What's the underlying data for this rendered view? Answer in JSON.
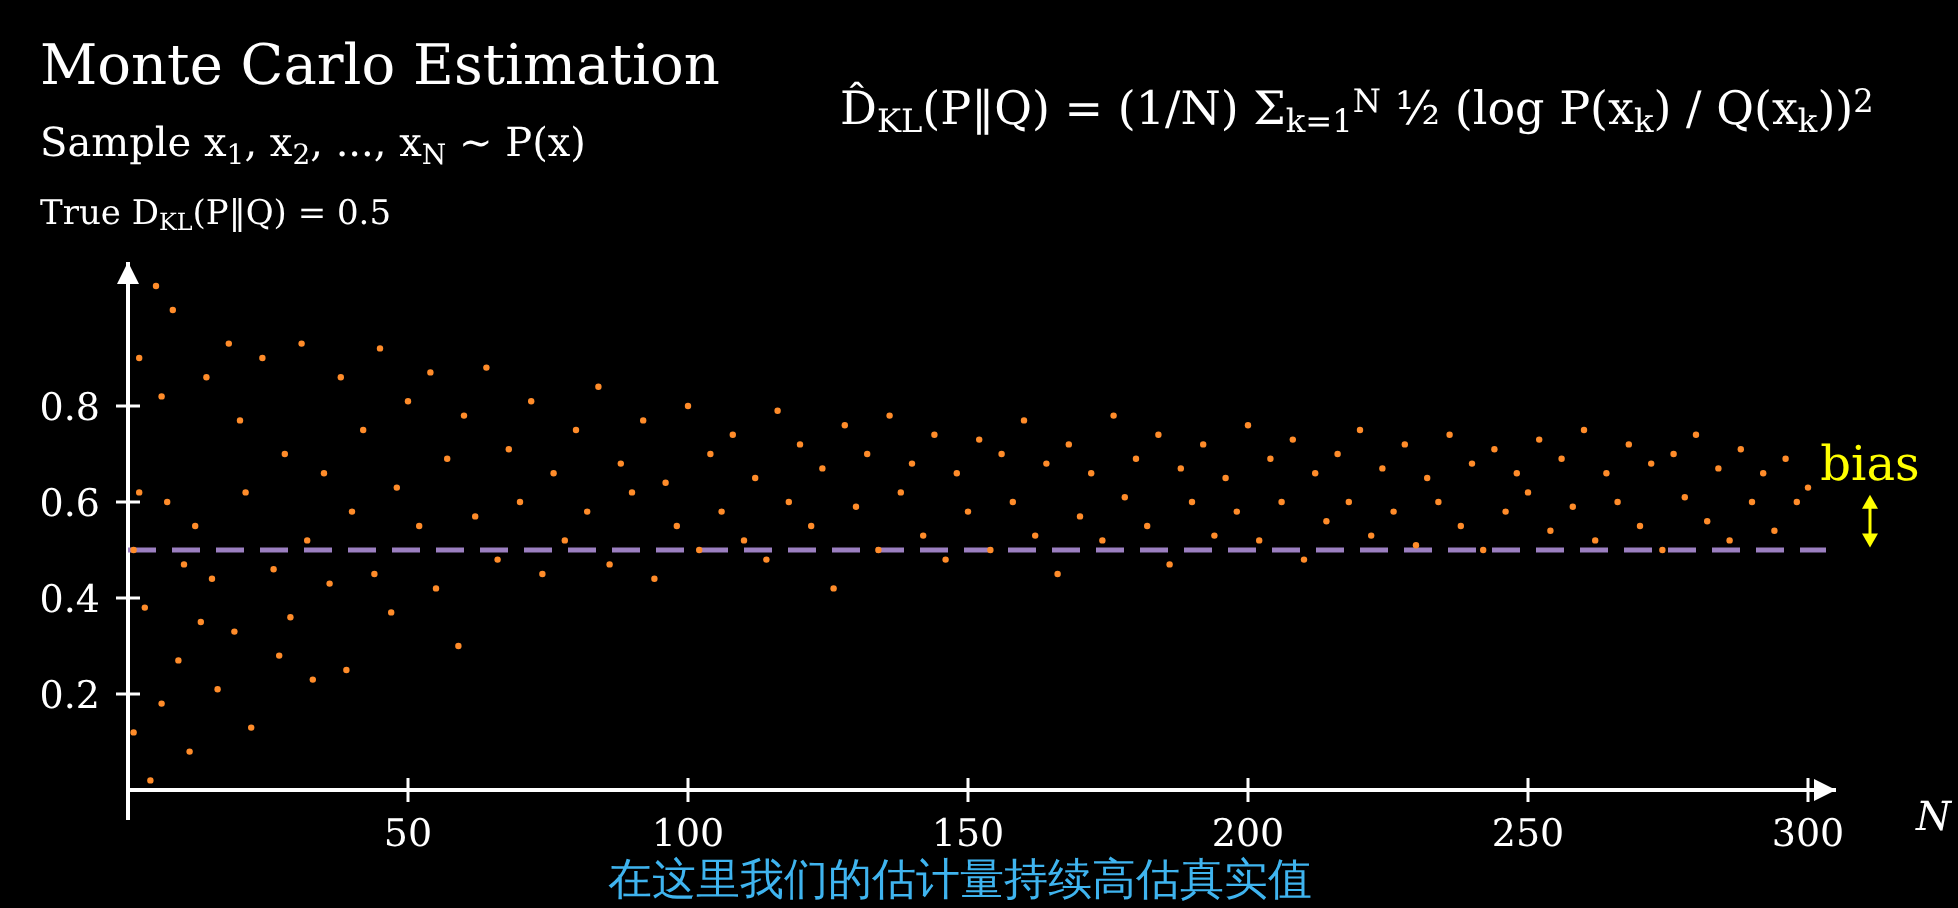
{
  "chart_data": {
    "type": "scatter",
    "title": "Monte Carlo Estimation",
    "subtitle": "Sample x$_{1}$, x$_{2}$, ..., x$_{N}$ ∼ P(x)",
    "xlabel": "N",
    "annotations": [
      "True  D$_{KL}$(P‖Q) = 0.5",
      "D̂$_{KL}$(P‖Q) = (1/N) Σ$_{k=1}$$^{N}$ ½ (log P(x$_{k}$) / Q(x$_{k}$))$^{2}$",
      "bias",
      "在这里我们的估计量持续高估真实值"
    ],
    "xlim": [
      0,
      305
    ],
    "ylim": [
      0,
      1.1
    ],
    "xticks": [
      50,
      100,
      150,
      200,
      250,
      300
    ],
    "yticks": [
      0.2,
      0.4,
      0.6,
      0.8
    ],
    "grid": false,
    "marker": "circle",
    "ref_lines": [
      {
        "axis": "y",
        "value": 0.5,
        "color": "#9b7fc0",
        "line_style": "dashed"
      }
    ],
    "series": [
      {
        "color": "#ff8c2a",
        "x": [
          1,
          1,
          2,
          2,
          3,
          4,
          5,
          6,
          6,
          7,
          8,
          9,
          10,
          11,
          12,
          13,
          14,
          15,
          16,
          18,
          19,
          20,
          21,
          22,
          24,
          26,
          27,
          28,
          29,
          31,
          32,
          33,
          35,
          36,
          38,
          39,
          40,
          42,
          44,
          45,
          47,
          48,
          50,
          52,
          54,
          55,
          57,
          59,
          60,
          62,
          64,
          66,
          68,
          70,
          72,
          74,
          76,
          78,
          80,
          82,
          84,
          86,
          88,
          90,
          92,
          94,
          96,
          98,
          100,
          102,
          104,
          106,
          108,
          110,
          112,
          114,
          116,
          118,
          120,
          122,
          124,
          126,
          128,
          130,
          132,
          134,
          136,
          138,
          140,
          142,
          144,
          146,
          148,
          150,
          152,
          154,
          156,
          158,
          160,
          162,
          164,
          166,
          168,
          170,
          172,
          174,
          176,
          178,
          180,
          182,
          184,
          186,
          188,
          190,
          192,
          194,
          196,
          198,
          200,
          202,
          204,
          206,
          208,
          210,
          212,
          214,
          216,
          218,
          220,
          222,
          224,
          226,
          228,
          230,
          232,
          234,
          236,
          238,
          240,
          242,
          244,
          246,
          248,
          250,
          252,
          254,
          256,
          258,
          260,
          262,
          264,
          266,
          268,
          270,
          272,
          274,
          276,
          278,
          280,
          282,
          284,
          286,
          288,
          290,
          292,
          294,
          296,
          298,
          300
        ],
        "values": [
          0.12,
          0.5,
          0.9,
          0.62,
          0.38,
          0.02,
          1.05,
          0.18,
          0.82,
          0.6,
          1.0,
          0.27,
          0.47,
          0.08,
          0.55,
          0.35,
          0.86,
          0.44,
          0.21,
          0.93,
          0.33,
          0.77,
          0.62,
          0.13,
          0.9,
          0.46,
          0.28,
          0.7,
          0.36,
          0.93,
          0.52,
          0.23,
          0.66,
          0.43,
          0.86,
          0.25,
          0.58,
          0.75,
          0.45,
          0.92,
          0.37,
          0.63,
          0.81,
          0.55,
          0.87,
          0.42,
          0.69,
          0.3,
          0.78,
          0.57,
          0.88,
          0.48,
          0.71,
          0.6,
          0.81,
          0.45,
          0.66,
          0.52,
          0.75,
          0.58,
          0.84,
          0.47,
          0.68,
          0.62,
          0.77,
          0.44,
          0.64,
          0.55,
          0.8,
          0.5,
          0.7,
          0.58,
          0.74,
          0.52,
          0.65,
          0.48,
          0.79,
          0.6,
          0.72,
          0.55,
          0.67,
          0.42,
          0.76,
          0.59,
          0.7,
          0.5,
          0.78,
          0.62,
          0.68,
          0.53,
          0.74,
          0.48,
          0.66,
          0.58,
          0.73,
          0.5,
          0.7,
          0.6,
          0.77,
          0.53,
          0.68,
          0.45,
          0.72,
          0.57,
          0.66,
          0.52,
          0.78,
          0.61,
          0.69,
          0.55,
          0.74,
          0.47,
          0.67,
          0.6,
          0.72,
          0.53,
          0.65,
          0.58,
          0.76,
          0.52,
          0.69,
          0.6,
          0.73,
          0.48,
          0.66,
          0.56,
          0.7,
          0.6,
          0.75,
          0.53,
          0.67,
          0.58,
          0.72,
          0.51,
          0.65,
          0.6,
          0.74,
          0.55,
          0.68,
          0.5,
          0.71,
          0.58,
          0.66,
          0.62,
          0.73,
          0.54,
          0.69,
          0.59,
          0.75,
          0.52,
          0.66,
          0.6,
          0.72,
          0.55,
          0.68,
          0.5,
          0.7,
          0.61,
          0.74,
          0.56,
          0.67,
          0.52,
          0.71,
          0.6,
          0.66,
          0.54,
          0.69,
          0.6,
          0.63
        ]
      }
    ]
  }
}
